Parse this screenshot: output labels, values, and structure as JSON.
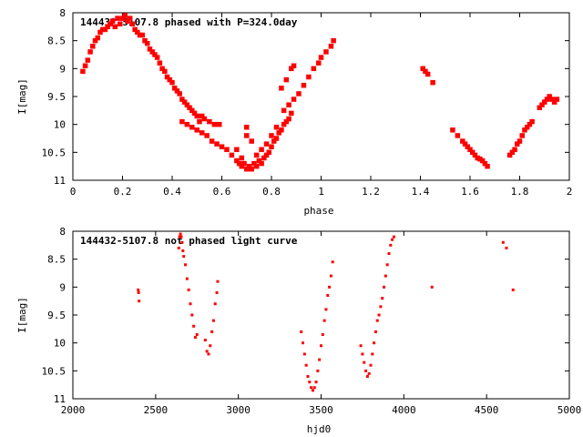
{
  "chart_data": [
    {
      "type": "scatter",
      "title": "144432-5107.8 phased with P=324.0day",
      "xlabel": "phase",
      "ylabel": "I[mag]",
      "xlim": [
        0,
        2
      ],
      "ylim": [
        8,
        11
      ],
      "y_inverted": true,
      "grid": false,
      "x_ticks": [
        0,
        0.2,
        0.4,
        0.6,
        0.8,
        1,
        1.2,
        1.4,
        1.6,
        1.8,
        2
      ],
      "x_tick_labels": [
        "0",
        "0.2",
        "0.4",
        "0.6",
        "0.8",
        "1",
        "1.2",
        "1.4",
        "1.6",
        "1.8",
        "2"
      ],
      "y_ticks": [
        8,
        8.5,
        9,
        9.5,
        10,
        10.5,
        11
      ],
      "y_tick_labels": [
        "8",
        "8.5",
        "9",
        "9.5",
        "10",
        "10.5",
        "11"
      ],
      "marker_color": "#ff0000",
      "marker": "filled-square",
      "series": [
        {
          "points": [
            [
              0.04,
              9.05
            ],
            [
              0.05,
              8.95
            ],
            [
              0.06,
              8.85
            ],
            [
              0.07,
              8.7
            ],
            [
              0.08,
              8.6
            ],
            [
              0.09,
              8.5
            ],
            [
              0.1,
              8.45
            ],
            [
              0.11,
              8.35
            ],
            [
              0.12,
              8.3
            ],
            [
              0.13,
              8.3
            ],
            [
              0.14,
              8.25
            ],
            [
              0.15,
              8.2
            ],
            [
              0.16,
              8.15
            ],
            [
              0.17,
              8.25
            ],
            [
              0.18,
              8.1
            ],
            [
              0.19,
              8.2
            ],
            [
              0.2,
              8.1
            ],
            [
              0.21,
              8.05
            ],
            [
              0.22,
              8.15
            ],
            [
              0.23,
              8.1
            ],
            [
              0.24,
              8.2
            ],
            [
              0.25,
              8.3
            ],
            [
              0.26,
              8.35
            ],
            [
              0.27,
              8.4
            ],
            [
              0.28,
              8.4
            ],
            [
              0.29,
              8.5
            ],
            [
              0.3,
              8.55
            ],
            [
              0.31,
              8.65
            ],
            [
              0.32,
              8.7
            ],
            [
              0.33,
              8.75
            ],
            [
              0.34,
              8.8
            ],
            [
              0.35,
              8.9
            ],
            [
              0.36,
              9.0
            ],
            [
              0.37,
              9.05
            ],
            [
              0.38,
              9.15
            ],
            [
              0.39,
              9.2
            ],
            [
              0.4,
              9.25
            ],
            [
              0.41,
              9.35
            ],
            [
              0.42,
              9.4
            ],
            [
              0.43,
              9.45
            ],
            [
              0.44,
              9.55
            ],
            [
              0.45,
              9.6
            ],
            [
              0.46,
              9.65
            ],
            [
              0.47,
              9.7
            ],
            [
              0.48,
              9.75
            ],
            [
              0.49,
              9.8
            ],
            [
              0.5,
              9.85
            ],
            [
              0.51,
              9.95
            ],
            [
              0.52,
              9.85
            ],
            [
              0.53,
              9.9
            ],
            [
              0.55,
              9.95
            ],
            [
              0.57,
              10.0
            ],
            [
              0.59,
              10.0
            ],
            [
              0.44,
              9.95
            ],
            [
              0.46,
              10.0
            ],
            [
              0.48,
              10.05
            ],
            [
              0.5,
              10.1
            ],
            [
              0.52,
              10.15
            ],
            [
              0.54,
              10.2
            ],
            [
              0.56,
              10.3
            ],
            [
              0.58,
              10.35
            ],
            [
              0.6,
              10.4
            ],
            [
              0.62,
              10.45
            ],
            [
              0.64,
              10.55
            ],
            [
              0.66,
              10.65
            ],
            [
              0.67,
              10.7
            ],
            [
              0.68,
              10.75
            ],
            [
              0.69,
              10.7
            ],
            [
              0.7,
              10.8
            ],
            [
              0.71,
              10.75
            ],
            [
              0.72,
              10.8
            ],
            [
              0.73,
              10.7
            ],
            [
              0.74,
              10.75
            ],
            [
              0.75,
              10.65
            ],
            [
              0.76,
              10.7
            ],
            [
              0.77,
              10.6
            ],
            [
              0.78,
              10.55
            ],
            [
              0.79,
              10.5
            ],
            [
              0.8,
              10.4
            ],
            [
              0.81,
              10.3
            ],
            [
              0.82,
              10.25
            ],
            [
              0.83,
              10.15
            ],
            [
              0.84,
              10.1
            ],
            [
              0.85,
              10.0
            ],
            [
              0.86,
              9.95
            ],
            [
              0.87,
              9.9
            ],
            [
              0.88,
              9.8
            ],
            [
              0.66,
              10.45
            ],
            [
              0.68,
              10.6
            ],
            [
              0.7,
              10.2
            ],
            [
              0.7,
              10.05
            ],
            [
              0.72,
              10.3
            ],
            [
              0.74,
              10.55
            ],
            [
              0.76,
              10.45
            ],
            [
              0.78,
              10.35
            ],
            [
              0.8,
              10.2
            ],
            [
              0.82,
              10.05
            ],
            [
              0.85,
              9.75
            ],
            [
              0.87,
              9.65
            ],
            [
              0.89,
              9.55
            ],
            [
              0.91,
              9.45
            ],
            [
              0.93,
              9.3
            ],
            [
              0.95,
              9.15
            ],
            [
              0.97,
              9.0
            ],
            [
              0.99,
              8.9
            ],
            [
              1.0,
              8.8
            ],
            [
              1.02,
              8.7
            ],
            [
              1.04,
              8.6
            ],
            [
              1.05,
              8.5
            ],
            [
              0.84,
              9.35
            ],
            [
              0.86,
              9.2
            ],
            [
              0.88,
              9.0
            ],
            [
              0.89,
              8.95
            ],
            [
              1.41,
              9.0
            ],
            [
              1.42,
              9.05
            ],
            [
              1.43,
              9.1
            ],
            [
              1.45,
              9.25
            ],
            [
              1.53,
              10.1
            ],
            [
              1.55,
              10.2
            ],
            [
              1.57,
              10.3
            ],
            [
              1.58,
              10.35
            ],
            [
              1.59,
              10.4
            ],
            [
              1.6,
              10.45
            ],
            [
              1.61,
              10.5
            ],
            [
              1.62,
              10.55
            ],
            [
              1.63,
              10.6
            ],
            [
              1.64,
              10.62
            ],
            [
              1.65,
              10.65
            ],
            [
              1.66,
              10.7
            ],
            [
              1.67,
              10.75
            ],
            [
              1.76,
              10.55
            ],
            [
              1.77,
              10.5
            ],
            [
              1.78,
              10.45
            ],
            [
              1.79,
              10.35
            ],
            [
              1.8,
              10.3
            ],
            [
              1.81,
              10.2
            ],
            [
              1.82,
              10.1
            ],
            [
              1.83,
              10.05
            ],
            [
              1.84,
              10.0
            ],
            [
              1.85,
              9.95
            ],
            [
              1.88,
              9.7
            ],
            [
              1.89,
              9.65
            ],
            [
              1.9,
              9.6
            ],
            [
              1.91,
              9.55
            ],
            [
              1.92,
              9.5
            ],
            [
              1.93,
              9.55
            ],
            [
              1.94,
              9.6
            ],
            [
              1.95,
              9.55
            ]
          ]
        }
      ]
    },
    {
      "type": "scatter",
      "title": "144432-5107.8 not phased light curve",
      "xlabel": "hjd0",
      "ylabel": "I[mag]",
      "xlim": [
        2000,
        5000
      ],
      "ylim": [
        8,
        11
      ],
      "y_inverted": true,
      "grid": false,
      "x_ticks": [
        2000,
        2500,
        3000,
        3500,
        4000,
        4500,
        5000
      ],
      "x_tick_labels": [
        "2000",
        "2500",
        "3000",
        "3500",
        "4000",
        "4500",
        "5000"
      ],
      "y_ticks": [
        8,
        8.5,
        9,
        9.5,
        10,
        10.5,
        11
      ],
      "y_tick_labels": [
        "8",
        "8.5",
        "9",
        "9.5",
        "10",
        "10.5",
        "11"
      ],
      "marker_color": "#ff0000",
      "marker": "small-dot",
      "series": [
        {
          "points": [
            [
              2395,
              9.05
            ],
            [
              2397,
              9.1
            ],
            [
              2400,
              9.25
            ],
            [
              2640,
              8.3
            ],
            [
              2645,
              8.1
            ],
            [
              2650,
              8.05
            ],
            [
              2655,
              8.1
            ],
            [
              2660,
              8.2
            ],
            [
              2665,
              8.35
            ],
            [
              2670,
              8.45
            ],
            [
              2680,
              8.6
            ],
            [
              2690,
              8.85
            ],
            [
              2700,
              9.05
            ],
            [
              2710,
              9.3
            ],
            [
              2720,
              9.5
            ],
            [
              2730,
              9.7
            ],
            [
              2740,
              9.9
            ],
            [
              2750,
              9.85
            ],
            [
              2800,
              9.95
            ],
            [
              2810,
              10.15
            ],
            [
              2820,
              10.2
            ],
            [
              2830,
              10.05
            ],
            [
              2840,
              9.8
            ],
            [
              2850,
              9.6
            ],
            [
              2860,
              9.3
            ],
            [
              2870,
              9.1
            ],
            [
              2875,
              8.9
            ],
            [
              3380,
              9.8
            ],
            [
              3390,
              10.0
            ],
            [
              3400,
              10.2
            ],
            [
              3410,
              10.4
            ],
            [
              3420,
              10.6
            ],
            [
              3430,
              10.7
            ],
            [
              3440,
              10.8
            ],
            [
              3450,
              10.85
            ],
            [
              3460,
              10.8
            ],
            [
              3470,
              10.7
            ],
            [
              3480,
              10.5
            ],
            [
              3490,
              10.3
            ],
            [
              3500,
              10.05
            ],
            [
              3510,
              9.85
            ],
            [
              3520,
              9.6
            ],
            [
              3530,
              9.4
            ],
            [
              3540,
              9.15
            ],
            [
              3550,
              9.0
            ],
            [
              3560,
              8.8
            ],
            [
              3570,
              8.55
            ],
            [
              3740,
              10.05
            ],
            [
              3750,
              10.2
            ],
            [
              3760,
              10.35
            ],
            [
              3770,
              10.5
            ],
            [
              3780,
              10.6
            ],
            [
              3790,
              10.55
            ],
            [
              3800,
              10.4
            ],
            [
              3810,
              10.2
            ],
            [
              3820,
              10.0
            ],
            [
              3830,
              9.8
            ],
            [
              3840,
              9.6
            ],
            [
              3850,
              9.5
            ],
            [
              3860,
              9.35
            ],
            [
              3870,
              9.2
            ],
            [
              3880,
              9.0
            ],
            [
              3890,
              8.8
            ],
            [
              3900,
              8.6
            ],
            [
              3910,
              8.4
            ],
            [
              3920,
              8.25
            ],
            [
              3930,
              8.15
            ],
            [
              3940,
              8.1
            ],
            [
              4170,
              9.0
            ],
            [
              4600,
              8.2
            ],
            [
              4620,
              8.3
            ],
            [
              4660,
              9.05
            ]
          ]
        }
      ]
    }
  ]
}
